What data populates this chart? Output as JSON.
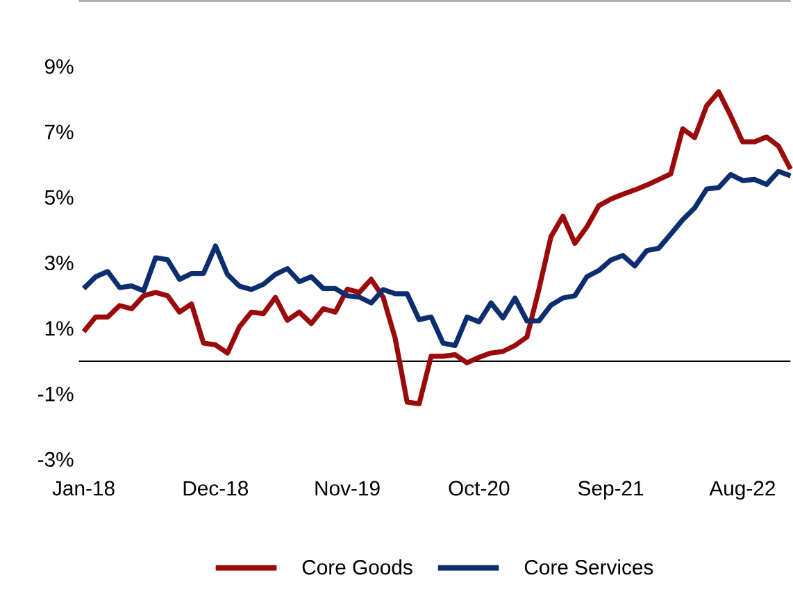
{
  "chart_data": {
    "type": "line",
    "categories": [
      "Jan-18",
      null,
      null,
      null,
      null,
      null,
      null,
      null,
      null,
      null,
      null,
      "Dec-18",
      null,
      null,
      null,
      null,
      null,
      null,
      null,
      null,
      null,
      null,
      "Nov-19",
      null,
      null,
      null,
      null,
      null,
      null,
      null,
      null,
      null,
      null,
      "Oct-20",
      null,
      null,
      null,
      null,
      null,
      null,
      null,
      null,
      null,
      null,
      "Sep-21",
      null,
      null,
      null,
      null,
      null,
      null,
      null,
      null,
      null,
      null,
      "Aug-22",
      null,
      null,
      null,
      null
    ],
    "series": [
      {
        "name": "Core Goods",
        "color": "#9b0a0a",
        "values": [
          0.9,
          1.35,
          1.35,
          1.7,
          1.6,
          2.0,
          2.1,
          2.0,
          1.5,
          1.75,
          0.55,
          0.5,
          0.25,
          1.05,
          1.5,
          1.45,
          1.95,
          1.25,
          1.5,
          1.15,
          1.6,
          1.5,
          2.2,
          2.1,
          2.5,
          1.95,
          0.7,
          -1.25,
          -1.3,
          0.15,
          0.15,
          0.2,
          -0.05,
          0.12,
          0.25,
          0.3,
          0.48,
          0.74,
          2.2,
          3.8,
          4.43,
          3.6,
          4.1,
          4.75,
          4.95,
          5.1,
          5.23,
          5.38,
          5.55,
          5.72,
          7.1,
          6.83,
          7.8,
          8.23,
          7.5,
          6.7,
          6.7,
          6.85,
          6.57,
          5.87
        ]
      },
      {
        "name": "Core Services",
        "color": "#0c2d6e",
        "values": [
          2.22,
          2.58,
          2.74,
          2.25,
          2.3,
          2.15,
          3.16,
          3.1,
          2.5,
          2.68,
          2.68,
          3.52,
          2.65,
          2.29,
          2.19,
          2.35,
          2.65,
          2.83,
          2.43,
          2.58,
          2.22,
          2.22,
          2.0,
          1.96,
          1.78,
          2.19,
          2.06,
          2.06,
          1.27,
          1.35,
          0.55,
          0.48,
          1.35,
          1.2,
          1.78,
          1.32,
          1.93,
          1.23,
          1.23,
          1.71,
          1.93,
          2.0,
          2.58,
          2.77,
          3.09,
          3.23,
          2.91,
          3.38,
          3.45,
          3.88,
          4.32,
          4.68,
          5.26,
          5.3,
          5.7,
          5.52,
          5.55,
          5.4,
          5.8,
          5.66
        ]
      }
    ],
    "ylim": [
      -3,
      11
    ],
    "yticks": [
      {
        "value": -3,
        "label": "-3%"
      },
      {
        "value": -1,
        "label": "-1%"
      },
      {
        "value": 1,
        "label": "1%"
      },
      {
        "value": 3,
        "label": "3%"
      },
      {
        "value": 5,
        "label": "5%"
      },
      {
        "value": 7,
        "label": "7%"
      },
      {
        "value": 9,
        "label": "9%"
      }
    ],
    "ref_lines": [
      {
        "axis": "y",
        "value": 0,
        "color": "#000000"
      }
    ],
    "legend": "bottom",
    "marker": "none",
    "line_style": "solid"
  }
}
